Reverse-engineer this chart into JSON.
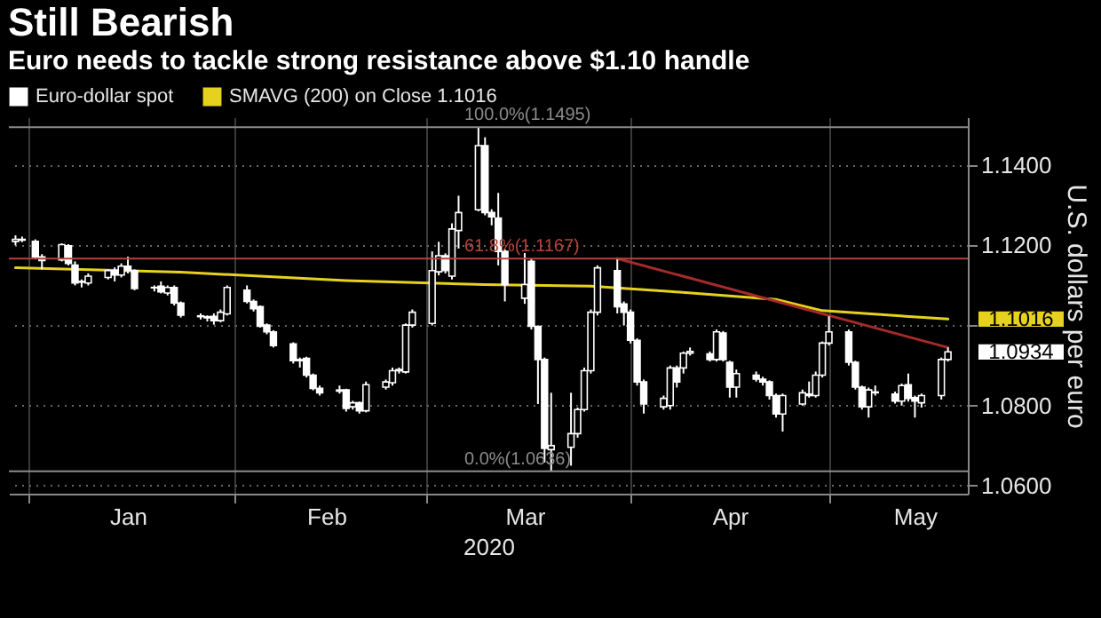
{
  "chart_data": {
    "type": "candlestick",
    "title": "Still Bearish",
    "subtitle": "Euro needs to tackle strong resistance above $1.10 handle",
    "xlabel": "2020",
    "ylabel": "U.S. dollars per euro",
    "xlim": [
      "2019-12-29",
      "2020-05-22"
    ],
    "xticks": [
      {
        "value": "2020-01-01",
        "label": null
      },
      {
        "value": "2020-01-16",
        "label": "Jan"
      },
      {
        "value": "2020-02-01",
        "label": null
      },
      {
        "value": "2020-02-15",
        "label": "Feb"
      },
      {
        "value": "2020-03-01",
        "label": null
      },
      {
        "value": "2020-03-16",
        "label": "Mar"
      },
      {
        "value": "2020-04-01",
        "label": null
      },
      {
        "value": "2020-04-16",
        "label": "Apr"
      },
      {
        "value": "2020-05-01",
        "label": null
      },
      {
        "value": "2020-05-14",
        "label": "May"
      }
    ],
    "ylim": [
      1.058,
      1.152
    ],
    "yticks": [
      {
        "value": 1.06,
        "label": "1.0600"
      },
      {
        "value": 1.08,
        "label": "1.0800"
      },
      {
        "value": 1.1,
        "label": null
      },
      {
        "value": 1.12,
        "label": "1.1200"
      },
      {
        "value": 1.14,
        "label": "1.1400"
      }
    ],
    "grid": true,
    "legend": "top left",
    "series": [
      {
        "name": "Euro-dollar spot",
        "color": "#ffffff",
        "x": [
          "2019-12-30",
          "2019-12-31",
          "2020-01-02",
          "2020-01-03",
          "2020-01-06",
          "2020-01-07",
          "2020-01-08",
          "2020-01-09",
          "2020-01-10",
          "2020-01-13",
          "2020-01-14",
          "2020-01-15",
          "2020-01-16",
          "2020-01-17",
          "2020-01-20",
          "2020-01-21",
          "2020-01-22",
          "2020-01-23",
          "2020-01-24",
          "2020-01-27",
          "2020-01-28",
          "2020-01-29",
          "2020-01-30",
          "2020-01-31",
          "2020-02-03",
          "2020-02-04",
          "2020-02-05",
          "2020-02-06",
          "2020-02-07",
          "2020-02-10",
          "2020-02-11",
          "2020-02-12",
          "2020-02-13",
          "2020-02-14",
          "2020-02-17",
          "2020-02-18",
          "2020-02-19",
          "2020-02-20",
          "2020-02-21",
          "2020-02-24",
          "2020-02-25",
          "2020-02-26",
          "2020-02-27",
          "2020-02-28",
          "2020-03-02",
          "2020-03-03",
          "2020-03-04",
          "2020-03-05",
          "2020-03-06",
          "2020-03-09",
          "2020-03-10",
          "2020-03-11",
          "2020-03-12",
          "2020-03-13",
          "2020-03-16",
          "2020-03-17",
          "2020-03-18",
          "2020-03-19",
          "2020-03-20",
          "2020-03-23",
          "2020-03-24",
          "2020-03-25",
          "2020-03-26",
          "2020-03-27",
          "2020-03-30",
          "2020-03-31",
          "2020-04-01",
          "2020-04-02",
          "2020-04-03",
          "2020-04-06",
          "2020-04-07",
          "2020-04-08",
          "2020-04-09",
          "2020-04-10",
          "2020-04-13",
          "2020-04-14",
          "2020-04-15",
          "2020-04-16",
          "2020-04-17",
          "2020-04-20",
          "2020-04-21",
          "2020-04-22",
          "2020-04-23",
          "2020-04-24",
          "2020-04-27",
          "2020-04-28",
          "2020-04-29",
          "2020-04-30",
          "2020-05-01",
          "2020-05-04",
          "2020-05-05",
          "2020-05-06",
          "2020-05-07",
          "2020-05-08",
          "2020-05-11",
          "2020-05-12",
          "2020-05-13",
          "2020-05-14",
          "2020-05-15",
          "2020-05-18",
          "2020-05-19"
        ],
        "ohlc": [
          [
            1.121,
            1.1225,
            1.12,
            1.1215
          ],
          [
            1.1215,
            1.1222,
            1.1208,
            1.1213
          ],
          [
            1.121,
            1.1215,
            1.1165,
            1.1171
          ],
          [
            1.1171,
            1.1178,
            1.114,
            1.1162
          ],
          [
            1.1164,
            1.1205,
            1.116,
            1.1202
          ],
          [
            1.1199,
            1.1203,
            1.115,
            1.1155
          ],
          [
            1.1151,
            1.116,
            1.11,
            1.1106
          ],
          [
            1.1108,
            1.1115,
            1.1095,
            1.111
          ],
          [
            1.1106,
            1.113,
            1.11,
            1.1123
          ],
          [
            1.112,
            1.114,
            1.1115,
            1.1137
          ],
          [
            1.1137,
            1.1145,
            1.111,
            1.1126
          ],
          [
            1.1126,
            1.1155,
            1.112,
            1.1148
          ],
          [
            1.1148,
            1.1172,
            1.113,
            1.1137
          ],
          [
            1.1137,
            1.114,
            1.1088,
            1.1092
          ],
          [
            1.1094,
            1.11,
            1.1085,
            1.1095
          ],
          [
            1.1098,
            1.111,
            1.108,
            1.1084
          ],
          [
            1.1081,
            1.11,
            1.1075,
            1.1095
          ],
          [
            1.1095,
            1.11,
            1.105,
            1.1056
          ],
          [
            1.1056,
            1.106,
            1.102,
            1.1026
          ],
          [
            1.1024,
            1.103,
            1.1015,
            1.1022
          ],
          [
            1.1022,
            1.1025,
            1.101,
            1.1019
          ],
          [
            1.1023,
            1.103,
            1.1002,
            1.1012
          ],
          [
            1.1012,
            1.104,
            1.1008,
            1.1033
          ],
          [
            1.1029,
            1.11,
            1.1025,
            1.1095
          ],
          [
            1.1088,
            1.11,
            1.1055,
            1.106
          ],
          [
            1.106,
            1.1065,
            1.1035,
            1.1042
          ],
          [
            1.1047,
            1.105,
            1.0995,
            1.0998
          ],
          [
            1.1001,
            1.1005,
            1.0978,
            1.0984
          ],
          [
            1.0984,
            1.0988,
            1.0945,
            1.095
          ],
          [
            1.0954,
            1.0958,
            1.0905,
            1.0912
          ],
          [
            1.0912,
            1.092,
            1.0895,
            1.0915
          ],
          [
            1.0918,
            1.0922,
            1.087,
            1.0876
          ],
          [
            1.0876,
            1.088,
            1.0838,
            1.0843
          ],
          [
            1.0843,
            1.085,
            1.0825,
            1.0832
          ],
          [
            1.0836,
            1.085,
            1.083,
            1.0839
          ],
          [
            1.0839,
            1.0842,
            1.0785,
            1.0793
          ],
          [
            1.0797,
            1.0812,
            1.079,
            1.0807
          ],
          [
            1.0807,
            1.081,
            1.078,
            1.0787
          ],
          [
            1.0787,
            1.086,
            1.0783,
            1.0852
          ],
          [
            1.0846,
            1.0865,
            1.084,
            1.0859
          ],
          [
            1.0857,
            1.0895,
            1.085,
            1.0887
          ],
          [
            1.0887,
            1.0895,
            1.088,
            1.089
          ],
          [
            1.0884,
            1.1005,
            1.088,
            1.1001
          ],
          [
            1.1001,
            1.104,
            1.0995,
            1.1033
          ],
          [
            1.1005,
            1.1185,
            1.1,
            1.1137
          ],
          [
            1.1134,
            1.1209,
            1.1125,
            1.1174
          ],
          [
            1.1174,
            1.118,
            1.113,
            1.1137
          ],
          [
            1.1123,
            1.1255,
            1.1115,
            1.1241
          ],
          [
            1.1237,
            1.1324,
            1.1192,
            1.1282
          ],
          [
            1.1289,
            1.1495,
            1.1285,
            1.1449
          ],
          [
            1.1449,
            1.147,
            1.1275,
            1.1282
          ],
          [
            1.1282,
            1.129,
            1.125,
            1.1271
          ],
          [
            1.1268,
            1.1331,
            1.115,
            1.1185
          ],
          [
            1.1185,
            1.119,
            1.106,
            1.1102
          ],
          [
            1.1068,
            1.1181,
            1.1054,
            1.1102
          ],
          [
            1.116,
            1.1167,
            1.099,
            1.0998
          ],
          [
            1.0998,
            1.1,
            1.0804,
            1.0915
          ],
          [
            1.0915,
            1.092,
            1.0658,
            1.0693
          ],
          [
            1.069,
            1.0832,
            1.0636,
            1.07
          ],
          [
            1.0696,
            1.0832,
            1.065,
            1.073
          ],
          [
            1.073,
            1.0795,
            1.072,
            1.079
          ],
          [
            1.079,
            1.0895,
            1.0785,
            1.0887
          ],
          [
            1.0887,
            1.104,
            1.088,
            1.1033
          ],
          [
            1.1033,
            1.115,
            1.1025,
            1.1144
          ],
          [
            1.1137,
            1.1167,
            1.103,
            1.1047
          ],
          [
            1.1054,
            1.106,
            1.1,
            1.1033
          ],
          [
            1.1033,
            1.104,
            1.0955,
            1.0963
          ],
          [
            1.0963,
            1.0968,
            1.085,
            1.0859
          ],
          [
            1.0859,
            1.0865,
            1.078,
            1.0804
          ],
          [
            1.0797,
            1.0825,
            1.079,
            1.0818
          ],
          [
            1.08,
            1.09,
            1.079,
            1.0894
          ],
          [
            1.0894,
            1.09,
            1.0845,
            1.0859
          ],
          [
            1.0894,
            1.0935,
            1.088,
            1.0931
          ],
          [
            1.0931,
            1.0945,
            1.0925,
            1.0935
          ],
          [
            1.0929,
            1.0935,
            1.091,
            1.0915
          ],
          [
            1.0915,
            1.099,
            1.091,
            1.0984
          ],
          [
            1.0981,
            1.0986,
            1.091,
            1.0915
          ],
          [
            1.0908,
            1.0912,
            1.082,
            1.0846
          ],
          [
            1.0846,
            1.089,
            1.082,
            1.088
          ],
          [
            1.0876,
            1.0885,
            1.086,
            1.0866
          ],
          [
            1.0866,
            1.0872,
            1.085,
            1.0859
          ],
          [
            1.0859,
            1.0863,
            1.0815,
            1.0825
          ],
          [
            1.0825,
            1.083,
            1.077,
            1.0779
          ],
          [
            1.0779,
            1.083,
            1.0735,
            1.0825
          ],
          [
            1.0804,
            1.084,
            1.08,
            1.0832
          ],
          [
            1.0829,
            1.086,
            1.082,
            1.0825
          ],
          [
            1.0825,
            1.0885,
            1.082,
            1.0876
          ],
          [
            1.0876,
            1.096,
            1.087,
            1.0956
          ],
          [
            1.0956,
            1.1023,
            1.095,
            1.0984
          ],
          [
            1.0984,
            1.099,
            1.09,
            1.0908
          ],
          [
            1.0908,
            1.0912,
            1.084,
            1.0846
          ],
          [
            1.0846,
            1.085,
            1.079,
            1.0797
          ],
          [
            1.0797,
            1.0845,
            1.077,
            1.0839
          ],
          [
            1.0834,
            1.085,
            1.0825,
            1.0832
          ],
          [
            1.0829,
            1.0835,
            1.0805,
            1.0811
          ],
          [
            1.0811,
            1.0855,
            1.08,
            1.085
          ],
          [
            1.0852,
            1.088,
            1.081,
            1.0818
          ],
          [
            1.082,
            1.0825,
            1.077,
            1.0811
          ],
          [
            1.0807,
            1.083,
            1.0795,
            1.0825
          ],
          [
            1.0825,
            1.092,
            1.0815,
            1.0915
          ],
          [
            1.0915,
            1.0945,
            1.091,
            1.0934
          ]
        ]
      },
      {
        "name": "SMAVG (200)  on Close 1.1016",
        "type": "line",
        "color": "#e6d21e",
        "x": [
          "2019-12-30",
          "2020-01-24",
          "2020-02-18",
          "2020-03-10",
          "2020-03-26",
          "2020-04-07",
          "2020-04-23",
          "2020-04-30",
          "2020-05-19"
        ],
        "values": [
          1.1144,
          1.1133,
          1.1112,
          1.1102,
          1.1098,
          1.1085,
          1.1065,
          1.1037,
          1.1016
        ]
      },
      {
        "type": "line",
        "color": "#a52a2a",
        "x": [
          "2020-03-30",
          "2020-05-19"
        ],
        "values": [
          1.1167,
          1.0945
        ]
      }
    ],
    "ref_lines": [
      {
        "axis": "y",
        "value": 1.1495,
        "label": "100.0%(1.1495)",
        "color": "#8c8c8c"
      },
      {
        "axis": "y",
        "value": 1.1167,
        "label": "61.8%(1.1167)",
        "color": "#b5443a"
      },
      {
        "axis": "y",
        "value": 1.0636,
        "label": "0.0%(1.0636)",
        "color": "#8c8c8c"
      }
    ],
    "annotations": [
      {
        "text": "1.1016",
        "x": "2020-05-19",
        "y": 1.1016
      },
      {
        "text": "1.0934",
        "x": "2020-05-19",
        "y": 1.0934
      }
    ]
  }
}
